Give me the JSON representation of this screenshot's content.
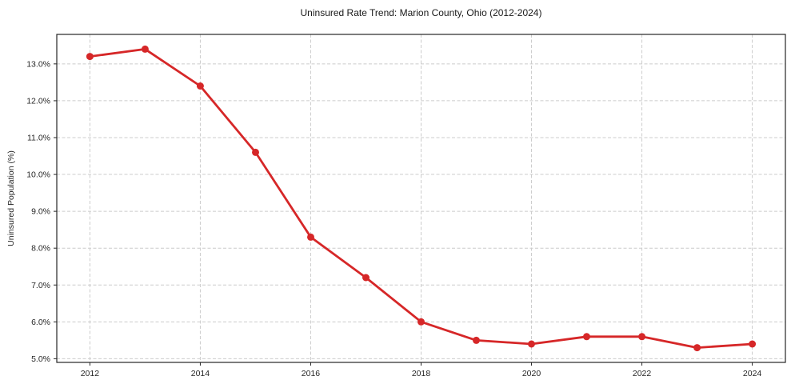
{
  "chart_data": {
    "type": "line",
    "title": "Uninsured Rate Trend: Marion County, Ohio (2012-2024)",
    "xlabel": "",
    "ylabel": "Uninsured Population (%)",
    "x": [
      2012,
      2013,
      2014,
      2015,
      2016,
      2017,
      2018,
      2019,
      2020,
      2021,
      2022,
      2023,
      2024
    ],
    "values": [
      13.2,
      13.4,
      12.4,
      10.6,
      8.3,
      7.2,
      6.0,
      5.5,
      5.4,
      5.6,
      5.6,
      5.3,
      5.4
    ],
    "xlim": [
      2011.4,
      2024.6
    ],
    "ylim": [
      4.9,
      13.8
    ],
    "x_ticks": [
      2012,
      2014,
      2016,
      2018,
      2020,
      2022,
      2024
    ],
    "y_ticks": [
      5.0,
      6.0,
      7.0,
      8.0,
      9.0,
      10.0,
      11.0,
      12.0,
      13.0
    ],
    "y_tick_suffix": "%",
    "grid": true,
    "legend_position": "none",
    "line_color": "#d62728",
    "marker_color": "#d62728",
    "grid_color": "#cccccc",
    "spine_color": "#262626",
    "background_color": "#ffffff"
  }
}
